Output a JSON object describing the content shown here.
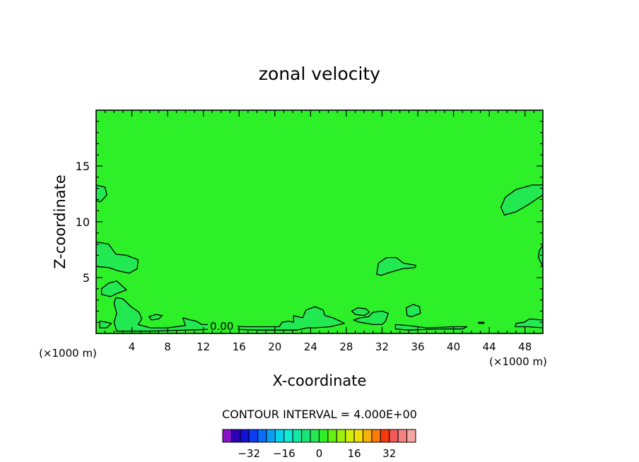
{
  "chart_data": {
    "type": "heatmap",
    "title": "zonal velocity",
    "xlabel": "X-coordinate",
    "ylabel": "Z-coordinate",
    "x_unit": "(×1000 m)",
    "x_unit_corner": "(×1000 m)",
    "xlim": [
      0,
      50
    ],
    "ylim": [
      0,
      20
    ],
    "x_ticks": [
      "4",
      "8",
      "12",
      "16",
      "20",
      "24",
      "28",
      "32",
      "36",
      "40",
      "44",
      "48"
    ],
    "y_ticks": [
      "5",
      "10",
      "15"
    ],
    "contour_label": "0.00",
    "contour_interval_text": "CONTOUR INTERVAL = 4.000E+00",
    "background_level": 0,
    "contour_levels": [
      0,
      4
    ],
    "field_regions": [
      {
        "level": 4,
        "polygon": [
          [
            0,
            13.3
          ],
          [
            1.0,
            13.1
          ],
          [
            1.2,
            12.4
          ],
          [
            0.5,
            11.8
          ],
          [
            0,
            11.9
          ]
        ]
      },
      {
        "level": 4,
        "polygon": [
          [
            0,
            8.2
          ],
          [
            1.4,
            8.0
          ],
          [
            2.2,
            7.1
          ],
          [
            3.4,
            7.0
          ],
          [
            4.7,
            6.6
          ],
          [
            4.6,
            5.8
          ],
          [
            3.7,
            5.4
          ],
          [
            2.5,
            5.6
          ],
          [
            1.4,
            5.9
          ],
          [
            0,
            6.0
          ]
        ]
      },
      {
        "level": 4,
        "polygon": [
          [
            0.6,
            4.0
          ],
          [
            1.4,
            4.5
          ],
          [
            2.3,
            4.7
          ],
          [
            3.4,
            3.9
          ],
          [
            2.4,
            3.6
          ],
          [
            1.6,
            3.3
          ],
          [
            0.6,
            3.5
          ]
        ]
      },
      {
        "level": 4,
        "polygon": [
          [
            2.2,
            3.2
          ],
          [
            3.0,
            3.1
          ],
          [
            3.9,
            2.4
          ],
          [
            4.8,
            1.9
          ],
          [
            5.1,
            1.3
          ],
          [
            4.7,
            0.8
          ],
          [
            6.1,
            0.5
          ],
          [
            8.0,
            0.5
          ],
          [
            10.0,
            0.7
          ],
          [
            9.7,
            1.4
          ],
          [
            10.6,
            1.2
          ],
          [
            11.2,
            1.1
          ],
          [
            11.8,
            0.8
          ],
          [
            13.2,
            0.8
          ],
          [
            16.5,
            0.6
          ],
          [
            20.5,
            0.6
          ],
          [
            20.8,
            1.0
          ],
          [
            21.6,
            1.1
          ],
          [
            22.1,
            1.0
          ],
          [
            22.1,
            1.6
          ],
          [
            23.1,
            1.4
          ],
          [
            23.5,
            2.1
          ],
          [
            24.5,
            2.4
          ],
          [
            25.4,
            2.1
          ],
          [
            25.6,
            1.6
          ],
          [
            26.5,
            1.4
          ],
          [
            27.3,
            1.1
          ],
          [
            27.8,
            0.9
          ],
          [
            26.2,
            0.6
          ],
          [
            24.5,
            0.5
          ],
          [
            23.6,
            0.5
          ],
          [
            22.5,
            0.3
          ],
          [
            18.5,
            0.3
          ],
          [
            14.0,
            0.4
          ],
          [
            10.0,
            0.3
          ],
          [
            6.0,
            0.2
          ],
          [
            3.8,
            0.2
          ],
          [
            2.3,
            0.2
          ],
          [
            2.0,
            1.0
          ],
          [
            2.3,
            1.8
          ],
          [
            2.0,
            2.7
          ]
        ]
      },
      {
        "level": 4,
        "polygon": [
          [
            0.4,
            1.1
          ],
          [
            1.2,
            1.0
          ],
          [
            1.7,
            0.9
          ],
          [
            1.2,
            0.5
          ],
          [
            0.4,
            0.5
          ]
        ]
      },
      {
        "level": 4,
        "polygon": [
          [
            5.9,
            1.5
          ],
          [
            6.7,
            1.7
          ],
          [
            7.4,
            1.6
          ],
          [
            7.0,
            1.3
          ],
          [
            6.2,
            1.2
          ]
        ]
      },
      {
        "level": 4,
        "polygon": [
          [
            29.3,
            2.3
          ],
          [
            30.2,
            2.2
          ],
          [
            30.6,
            1.9
          ],
          [
            30.0,
            1.6
          ],
          [
            29.0,
            1.7
          ],
          [
            28.6,
            2.0
          ]
        ]
      },
      {
        "level": 4,
        "polygon": [
          [
            28.8,
            1.2
          ],
          [
            29.6,
            1.4
          ],
          [
            30.5,
            1.5
          ],
          [
            31.0,
            1.9
          ],
          [
            32.0,
            2.0
          ],
          [
            32.7,
            1.8
          ],
          [
            32.4,
            1.1
          ],
          [
            32.0,
            0.8
          ],
          [
            31.0,
            0.8
          ],
          [
            30.3,
            0.9
          ],
          [
            29.5,
            1.0
          ]
        ]
      },
      {
        "level": 4,
        "polygon": [
          [
            31.4,
            5.3
          ],
          [
            31.6,
            6.3
          ],
          [
            32.5,
            6.8
          ],
          [
            33.6,
            6.8
          ],
          [
            34.4,
            6.3
          ],
          [
            35.8,
            6.1
          ],
          [
            35.7,
            5.9
          ],
          [
            34.3,
            5.8
          ],
          [
            33.0,
            5.5
          ],
          [
            31.9,
            5.2
          ]
        ]
      },
      {
        "level": 4,
        "polygon": [
          [
            34.7,
            2.3
          ],
          [
            35.5,
            2.6
          ],
          [
            36.2,
            2.4
          ],
          [
            36.3,
            1.8
          ],
          [
            35.3,
            1.5
          ],
          [
            34.8,
            1.6
          ]
        ]
      },
      {
        "level": 4,
        "polygon": [
          [
            33.5,
            0.8
          ],
          [
            35.0,
            0.7
          ],
          [
            37.0,
            0.5
          ],
          [
            40.0,
            0.6
          ],
          [
            41.5,
            0.6
          ],
          [
            41.0,
            0.4
          ],
          [
            38.0,
            0.4
          ],
          [
            35.0,
            0.3
          ],
          [
            33.5,
            0.4
          ]
        ]
      },
      {
        "level": 4,
        "polygon": [
          [
            45.3,
            11.3
          ],
          [
            45.8,
            12.2
          ],
          [
            47.0,
            12.9
          ],
          [
            48.8,
            13.3
          ],
          [
            50,
            13.3
          ],
          [
            50,
            12.4
          ],
          [
            48.3,
            11.5
          ],
          [
            47.0,
            10.9
          ],
          [
            45.7,
            10.6
          ]
        ]
      },
      {
        "level": 4,
        "polygon": [
          [
            50,
            7.9
          ],
          [
            49.6,
            7.4
          ],
          [
            49.5,
            6.8
          ],
          [
            50,
            6.0
          ]
        ]
      },
      {
        "level": 4,
        "polygon": [
          [
            47.0,
            0.9
          ],
          [
            47.9,
            1.0
          ],
          [
            48.5,
            1.3
          ],
          [
            50,
            1.2
          ],
          [
            50,
            0.5
          ],
          [
            48.3,
            0.6
          ],
          [
            46.9,
            0.6
          ]
        ]
      },
      {
        "level": 4,
        "polygon": [
          [
            42.8,
            1.0
          ],
          [
            43.4,
            1.0
          ],
          [
            43.4,
            0.9
          ],
          [
            42.8,
            0.9
          ]
        ]
      }
    ],
    "colorbar": {
      "ticks": [
        "−32",
        "−16",
        "0",
        "16",
        "32"
      ],
      "colors": [
        "#8a12c9",
        "#2e00b5",
        "#1210d4",
        "#0a3cf0",
        "#0a6ef5",
        "#0aa0ef",
        "#0ad2ec",
        "#10ecd6",
        "#14e6a4",
        "#18e478",
        "#22e852",
        "#2ef028",
        "#64f011",
        "#9cf00b",
        "#d4ec0a",
        "#f4dc0a",
        "#f8b00a",
        "#fb7a0a",
        "#f6390e",
        "#f45a5a",
        "#f7827e",
        "#f6a8a2"
      ]
    },
    "colors": {
      "background_fill": "#2ef028",
      "contour_fill": "#22e852",
      "line": "#000000"
    }
  }
}
